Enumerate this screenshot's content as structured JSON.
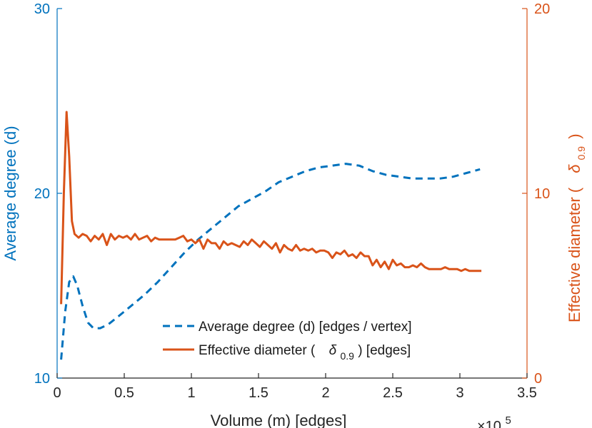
{
  "chart_data": {
    "type": "line",
    "xlabel": "Volume (m) [edges]",
    "x_exponent_base": "×10",
    "x_exponent": "5",
    "xlim": [
      0,
      3.5
    ],
    "xticks": [
      "0",
      "0.5",
      "1",
      "1.5",
      "2",
      "2.5",
      "3",
      "3.5"
    ],
    "y_left": {
      "label": "Average degree (d)",
      "lim": [
        10,
        30
      ],
      "ticks": [
        "10",
        "20",
        "30"
      ],
      "color": "#0072BD"
    },
    "y_right": {
      "label_prefix": "Effective diameter (",
      "label_symbol": "δ",
      "label_subscript": "0.9",
      "label_suffix": ")",
      "lim": [
        0,
        20
      ],
      "ticks": [
        "0",
        "10",
        "20"
      ],
      "color": "#D95319"
    },
    "legend": {
      "position": "lower-right",
      "entries": [
        {
          "text": "Average degree (d) [edges / vertex]"
        },
        {
          "prefix": "Effective diameter (",
          "symbol": "δ",
          "subscript": "0.9",
          "suffix": ") [edges]"
        }
      ]
    },
    "series": [
      {
        "name": "Average degree (d) [edges / vertex]",
        "axis": "left",
        "style": "dashed",
        "color": "#0072BD",
        "x": [
          0.03,
          0.06,
          0.09,
          0.12,
          0.15,
          0.19,
          0.23,
          0.27,
          0.32,
          0.38,
          0.45,
          0.55,
          0.65,
          0.75,
          0.85,
          0.95,
          1.05,
          1.15,
          1.25,
          1.35,
          1.45,
          1.55,
          1.65,
          1.75,
          1.85,
          1.95,
          2.05,
          2.15,
          2.25,
          2.35,
          2.45,
          2.55,
          2.65,
          2.75,
          2.85,
          2.95,
          3.05,
          3.15
        ],
        "values": [
          11.0,
          13.6,
          15.2,
          15.5,
          15.0,
          13.9,
          13.0,
          12.7,
          12.7,
          12.9,
          13.3,
          13.9,
          14.5,
          15.2,
          16.0,
          16.8,
          17.5,
          18.1,
          18.7,
          19.3,
          19.7,
          20.1,
          20.6,
          20.9,
          21.2,
          21.4,
          21.5,
          21.6,
          21.5,
          21.2,
          21.0,
          20.9,
          20.8,
          20.8,
          20.8,
          20.9,
          21.1,
          21.3
        ]
      },
      {
        "name": "Effective diameter (δ0.9) [edges]",
        "axis": "right",
        "style": "solid",
        "color": "#D95319",
        "x": [
          0.03,
          0.05,
          0.07,
          0.09,
          0.11,
          0.13,
          0.16,
          0.19,
          0.22,
          0.25,
          0.28,
          0.31,
          0.34,
          0.37,
          0.4,
          0.43,
          0.46,
          0.49,
          0.52,
          0.55,
          0.58,
          0.61,
          0.64,
          0.67,
          0.7,
          0.73,
          0.76,
          0.79,
          0.82,
          0.85,
          0.88,
          0.91,
          0.94,
          0.97,
          1.0,
          1.03,
          1.06,
          1.09,
          1.12,
          1.15,
          1.18,
          1.21,
          1.24,
          1.27,
          1.3,
          1.33,
          1.36,
          1.39,
          1.42,
          1.45,
          1.48,
          1.51,
          1.54,
          1.57,
          1.6,
          1.63,
          1.66,
          1.69,
          1.72,
          1.75,
          1.78,
          1.81,
          1.84,
          1.87,
          1.9,
          1.93,
          1.96,
          1.99,
          2.02,
          2.05,
          2.08,
          2.11,
          2.14,
          2.17,
          2.2,
          2.23,
          2.26,
          2.29,
          2.32,
          2.35,
          2.38,
          2.41,
          2.44,
          2.47,
          2.5,
          2.53,
          2.56,
          2.59,
          2.62,
          2.65,
          2.68,
          2.71,
          2.74,
          2.77,
          2.8,
          2.83,
          2.86,
          2.89,
          2.92,
          2.95,
          2.98,
          3.01,
          3.04,
          3.07,
          3.1,
          3.13,
          3.16
        ],
        "values": [
          4.0,
          10.0,
          14.4,
          12.0,
          8.5,
          7.8,
          7.6,
          7.8,
          7.7,
          7.4,
          7.7,
          7.5,
          7.8,
          7.2,
          7.8,
          7.5,
          7.7,
          7.6,
          7.7,
          7.5,
          7.8,
          7.5,
          7.6,
          7.7,
          7.4,
          7.6,
          7.5,
          7.5,
          7.5,
          7.5,
          7.5,
          7.6,
          7.7,
          7.4,
          7.5,
          7.3,
          7.5,
          7.0,
          7.5,
          7.3,
          7.3,
          7.0,
          7.4,
          7.2,
          7.3,
          7.2,
          7.1,
          7.4,
          7.2,
          7.5,
          7.3,
          7.1,
          7.4,
          7.2,
          7.0,
          7.3,
          6.8,
          7.2,
          7.0,
          6.9,
          7.2,
          6.9,
          7.0,
          6.9,
          7.0,
          6.8,
          6.9,
          6.9,
          6.8,
          6.5,
          6.8,
          6.7,
          6.9,
          6.6,
          6.7,
          6.5,
          6.8,
          6.6,
          6.6,
          6.1,
          6.4,
          6.0,
          6.3,
          5.9,
          6.4,
          6.1,
          6.2,
          6.0,
          6.0,
          6.1,
          6.0,
          6.2,
          6.0,
          5.9,
          5.9,
          5.9,
          5.9,
          6.0,
          5.9,
          5.9,
          5.9,
          5.8,
          5.9,
          5.8,
          5.8,
          5.8,
          5.8
        ]
      }
    ]
  }
}
